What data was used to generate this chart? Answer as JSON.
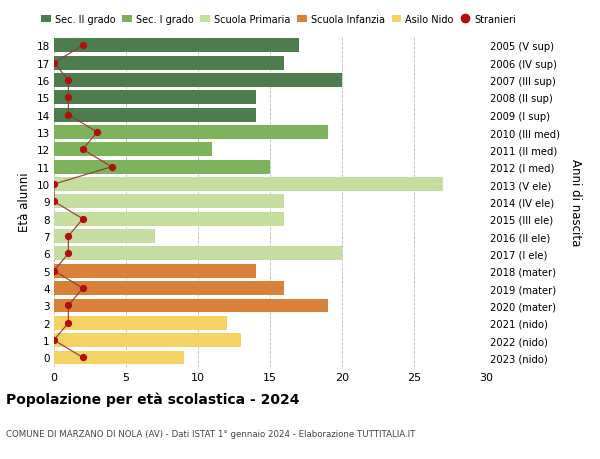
{
  "ages": [
    18,
    17,
    16,
    15,
    14,
    13,
    12,
    11,
    10,
    9,
    8,
    7,
    6,
    5,
    4,
    3,
    2,
    1,
    0
  ],
  "years": [
    "2005 (V sup)",
    "2006 (IV sup)",
    "2007 (III sup)",
    "2008 (II sup)",
    "2009 (I sup)",
    "2010 (III med)",
    "2011 (II med)",
    "2012 (I med)",
    "2013 (V ele)",
    "2014 (IV ele)",
    "2015 (III ele)",
    "2016 (II ele)",
    "2017 (I ele)",
    "2018 (mater)",
    "2019 (mater)",
    "2020 (mater)",
    "2021 (nido)",
    "2022 (nido)",
    "2023 (nido)"
  ],
  "values": [
    17,
    16,
    20,
    14,
    14,
    19,
    11,
    15,
    27,
    16,
    16,
    7,
    20,
    14,
    16,
    19,
    12,
    13,
    9
  ],
  "colors": [
    "#4d7c4d",
    "#4d7c4d",
    "#4d7c4d",
    "#4d7c4d",
    "#4d7c4d",
    "#7db35a",
    "#7db35a",
    "#7db35a",
    "#c5dea0",
    "#c5dea0",
    "#c5dea0",
    "#c5dea0",
    "#c5dea0",
    "#d9813a",
    "#d9813a",
    "#d9813a",
    "#f5d264",
    "#f5d264",
    "#f5d264"
  ],
  "stranieri": [
    2,
    0,
    1,
    1,
    1,
    3,
    2,
    4,
    0,
    0,
    2,
    1,
    1,
    0,
    2,
    1,
    1,
    0,
    2
  ],
  "legend_labels": [
    "Sec. II grado",
    "Sec. I grado",
    "Scuola Primaria",
    "Scuola Infanzia",
    "Asilo Nido",
    "Stranieri"
  ],
  "legend_colors": [
    "#4d7c4d",
    "#7db35a",
    "#c5dea0",
    "#d9813a",
    "#f5d264",
    "#b01010"
  ],
  "title": "Popolazione per età scolastica - 2024",
  "subtitle": "COMUNE DI MARZANO DI NOLA (AV) - Dati ISTAT 1° gennaio 2024 - Elaborazione TUTTITALIA.IT",
  "ylabel_left": "Età alunni",
  "ylabel_right": "Anni di nascita",
  "xlim": [
    0,
    30
  ],
  "bg_color": "#ffffff",
  "grid_color": "#bbbbbb",
  "bar_height": 0.8
}
